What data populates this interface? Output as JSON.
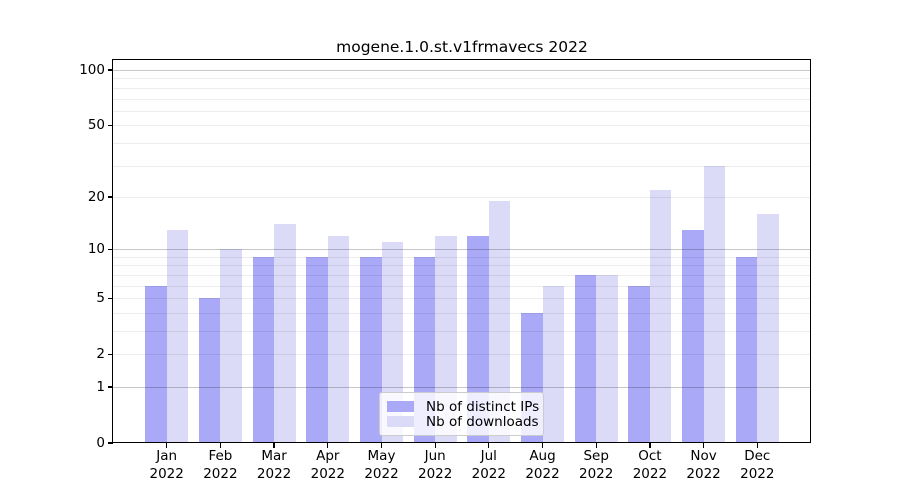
{
  "chart_data": {
    "type": "bar",
    "title": "mogene.1.0.st.v1frmavecs 2022",
    "categories": [
      "Jan",
      "Feb",
      "Mar",
      "Apr",
      "May",
      "Jun",
      "Jul",
      "Aug",
      "Sep",
      "Oct",
      "Nov",
      "Dec"
    ],
    "x_tick_year": "2022",
    "series": [
      {
        "name": "Nb of distinct IPs",
        "color": "#a9a9f8",
        "values": [
          6,
          5,
          9,
          9,
          9,
          9,
          12,
          4,
          7,
          6,
          13,
          9
        ]
      },
      {
        "name": "Nb of downloads",
        "color": "#dbdbf8",
        "values": [
          13,
          10,
          14,
          12,
          11,
          12,
          19,
          6,
          7,
          22,
          30,
          16
        ]
      }
    ],
    "yscale": "log10(value+1)",
    "yticks": [
      0,
      1,
      2,
      5,
      10,
      20,
      50,
      100
    ],
    "ylim": [
      0,
      110
    ],
    "grid": {
      "major": [
        1,
        10,
        100
      ],
      "minor": [
        2,
        3,
        4,
        5,
        6,
        7,
        8,
        9,
        20,
        30,
        40,
        50,
        60,
        70,
        80,
        90
      ]
    },
    "legend": {
      "position": "inside-bottom-center"
    }
  }
}
